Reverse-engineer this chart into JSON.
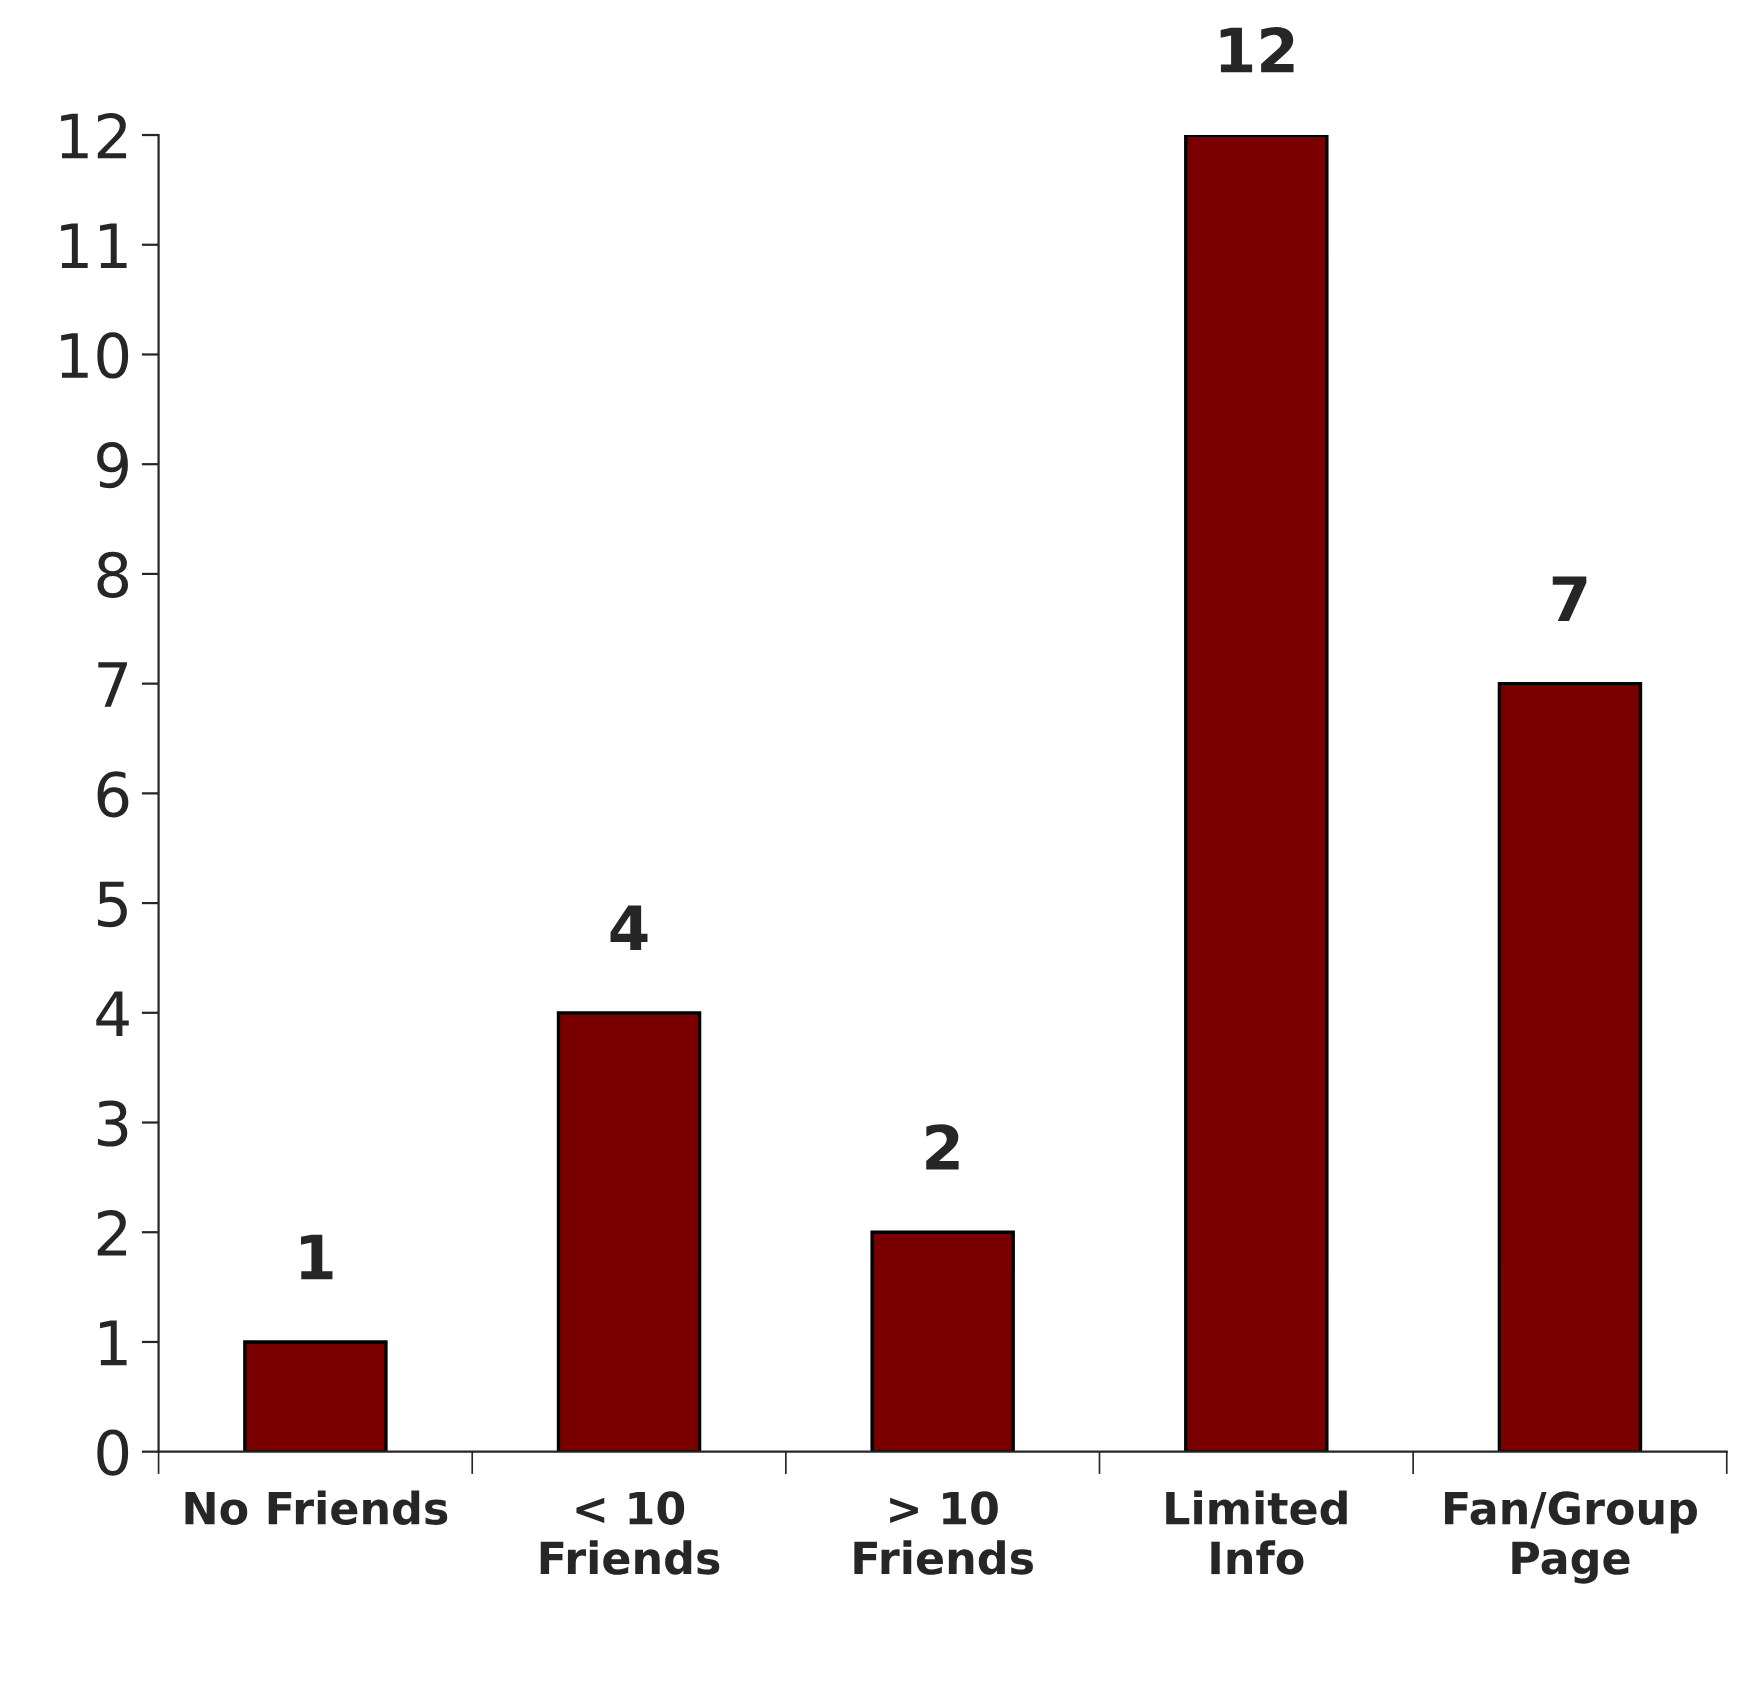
{
  "chart_data": {
    "type": "bar",
    "categories": [
      "No Friends",
      "< 10\nFriends",
      "> 10\nFriends",
      "Limited\nInfo",
      "Fan/Group\nPage"
    ],
    "values": [
      1,
      4,
      2,
      12,
      7
    ],
    "color": "#7a0000",
    "ylim": [
      0,
      12
    ],
    "yticks": [
      0,
      1,
      2,
      3,
      4,
      5,
      6,
      7,
      8,
      9,
      10,
      11,
      12
    ],
    "data_labels": true,
    "grid": false,
    "legend": false
  }
}
